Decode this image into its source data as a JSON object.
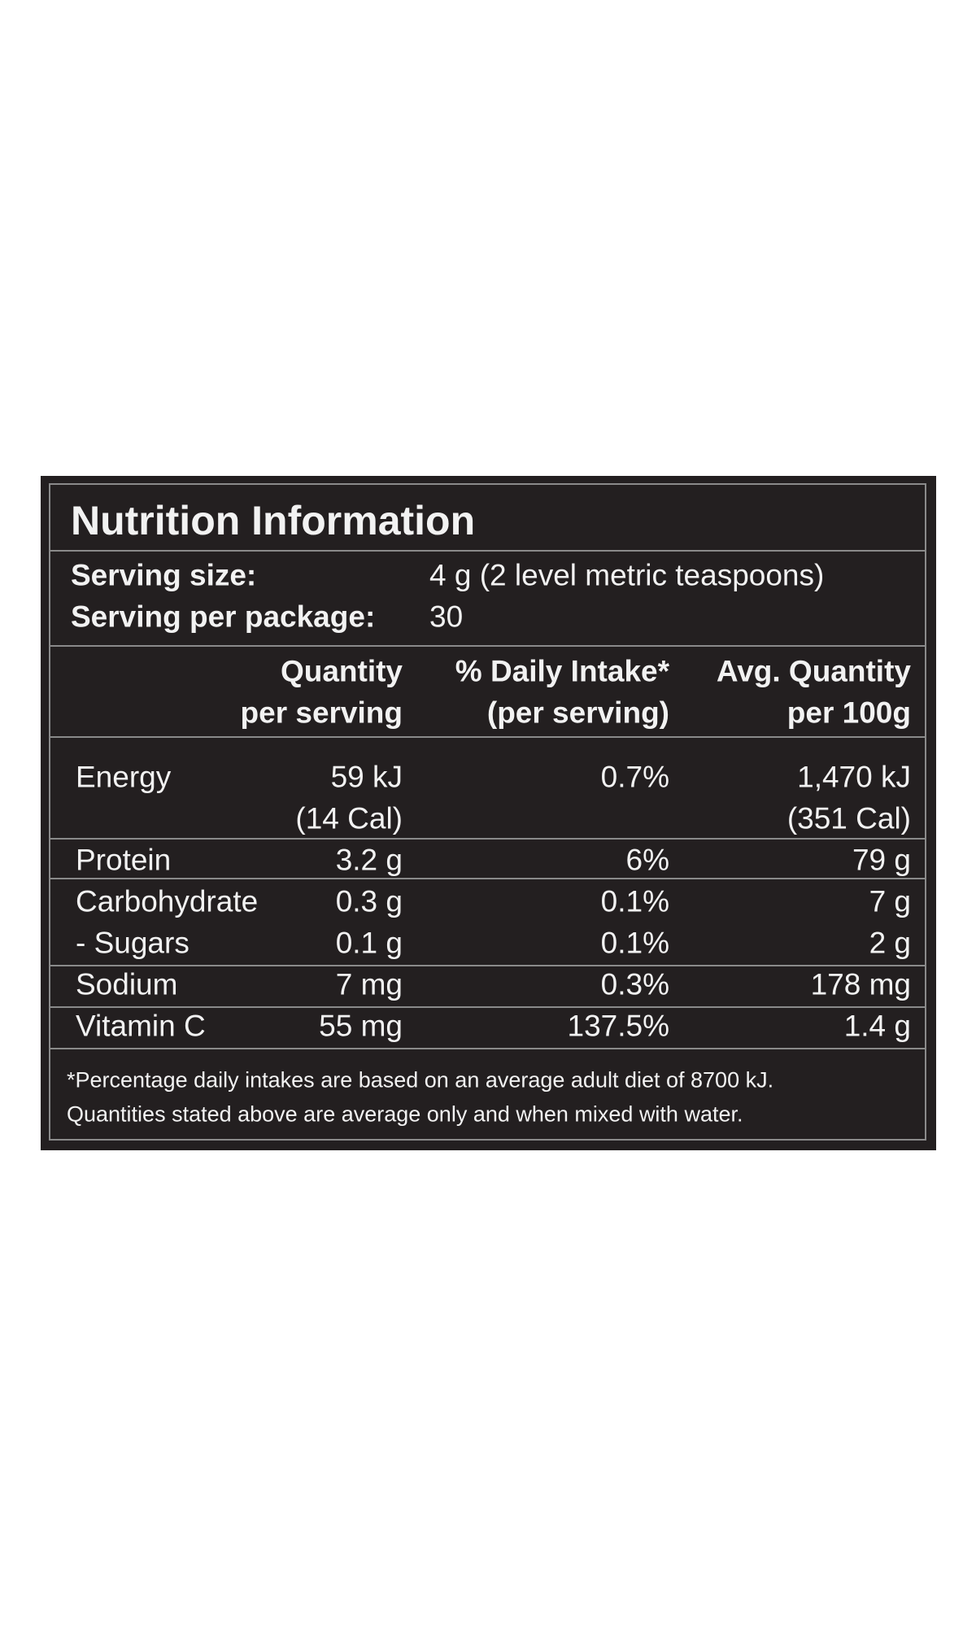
{
  "title": "Nutrition Information",
  "serving": [
    {
      "label": "Serving size:",
      "value": "4 g (2 level metric teaspoons)"
    },
    {
      "label": "Serving per package:",
      "value": "30"
    }
  ],
  "columns": [
    [
      "Quantity",
      "per serving"
    ],
    [
      "% Daily Intake*",
      "(per serving)"
    ],
    [
      "Avg. Quantity",
      "per 100g"
    ]
  ],
  "rows": [
    {
      "name": "Energy",
      "cells": [
        [
          "59 kJ",
          "(14 Cal)"
        ],
        [
          "0.7%"
        ],
        [
          "1,470 kJ",
          "(351 Cal)"
        ]
      ]
    },
    {
      "name": "Protein",
      "cells": [
        [
          "3.2 g"
        ],
        [
          "6%"
        ],
        [
          "79 g"
        ]
      ]
    },
    {
      "name": "Carbohydrate",
      "cells": [
        [
          "0.3 g"
        ],
        [
          "0.1%"
        ],
        [
          "7 g"
        ]
      ]
    },
    {
      "name": "- Sugars",
      "cells": [
        [
          "0.1 g"
        ],
        [
          "0.1%"
        ],
        [
          "2 g"
        ]
      ]
    },
    {
      "name": "Sodium",
      "cells": [
        [
          "7 mg"
        ],
        [
          "0.3%"
        ],
        [
          "178 mg"
        ]
      ]
    },
    {
      "name": "Vitamin C",
      "cells": [
        [
          "55 mg"
        ],
        [
          "137.5%"
        ],
        [
          "1.4 g"
        ]
      ]
    }
  ],
  "footnote": [
    "*Percentage daily intakes are based on an average adult diet of 8700 kJ.",
    "Quantities stated above are average only and when mixed with water."
  ]
}
